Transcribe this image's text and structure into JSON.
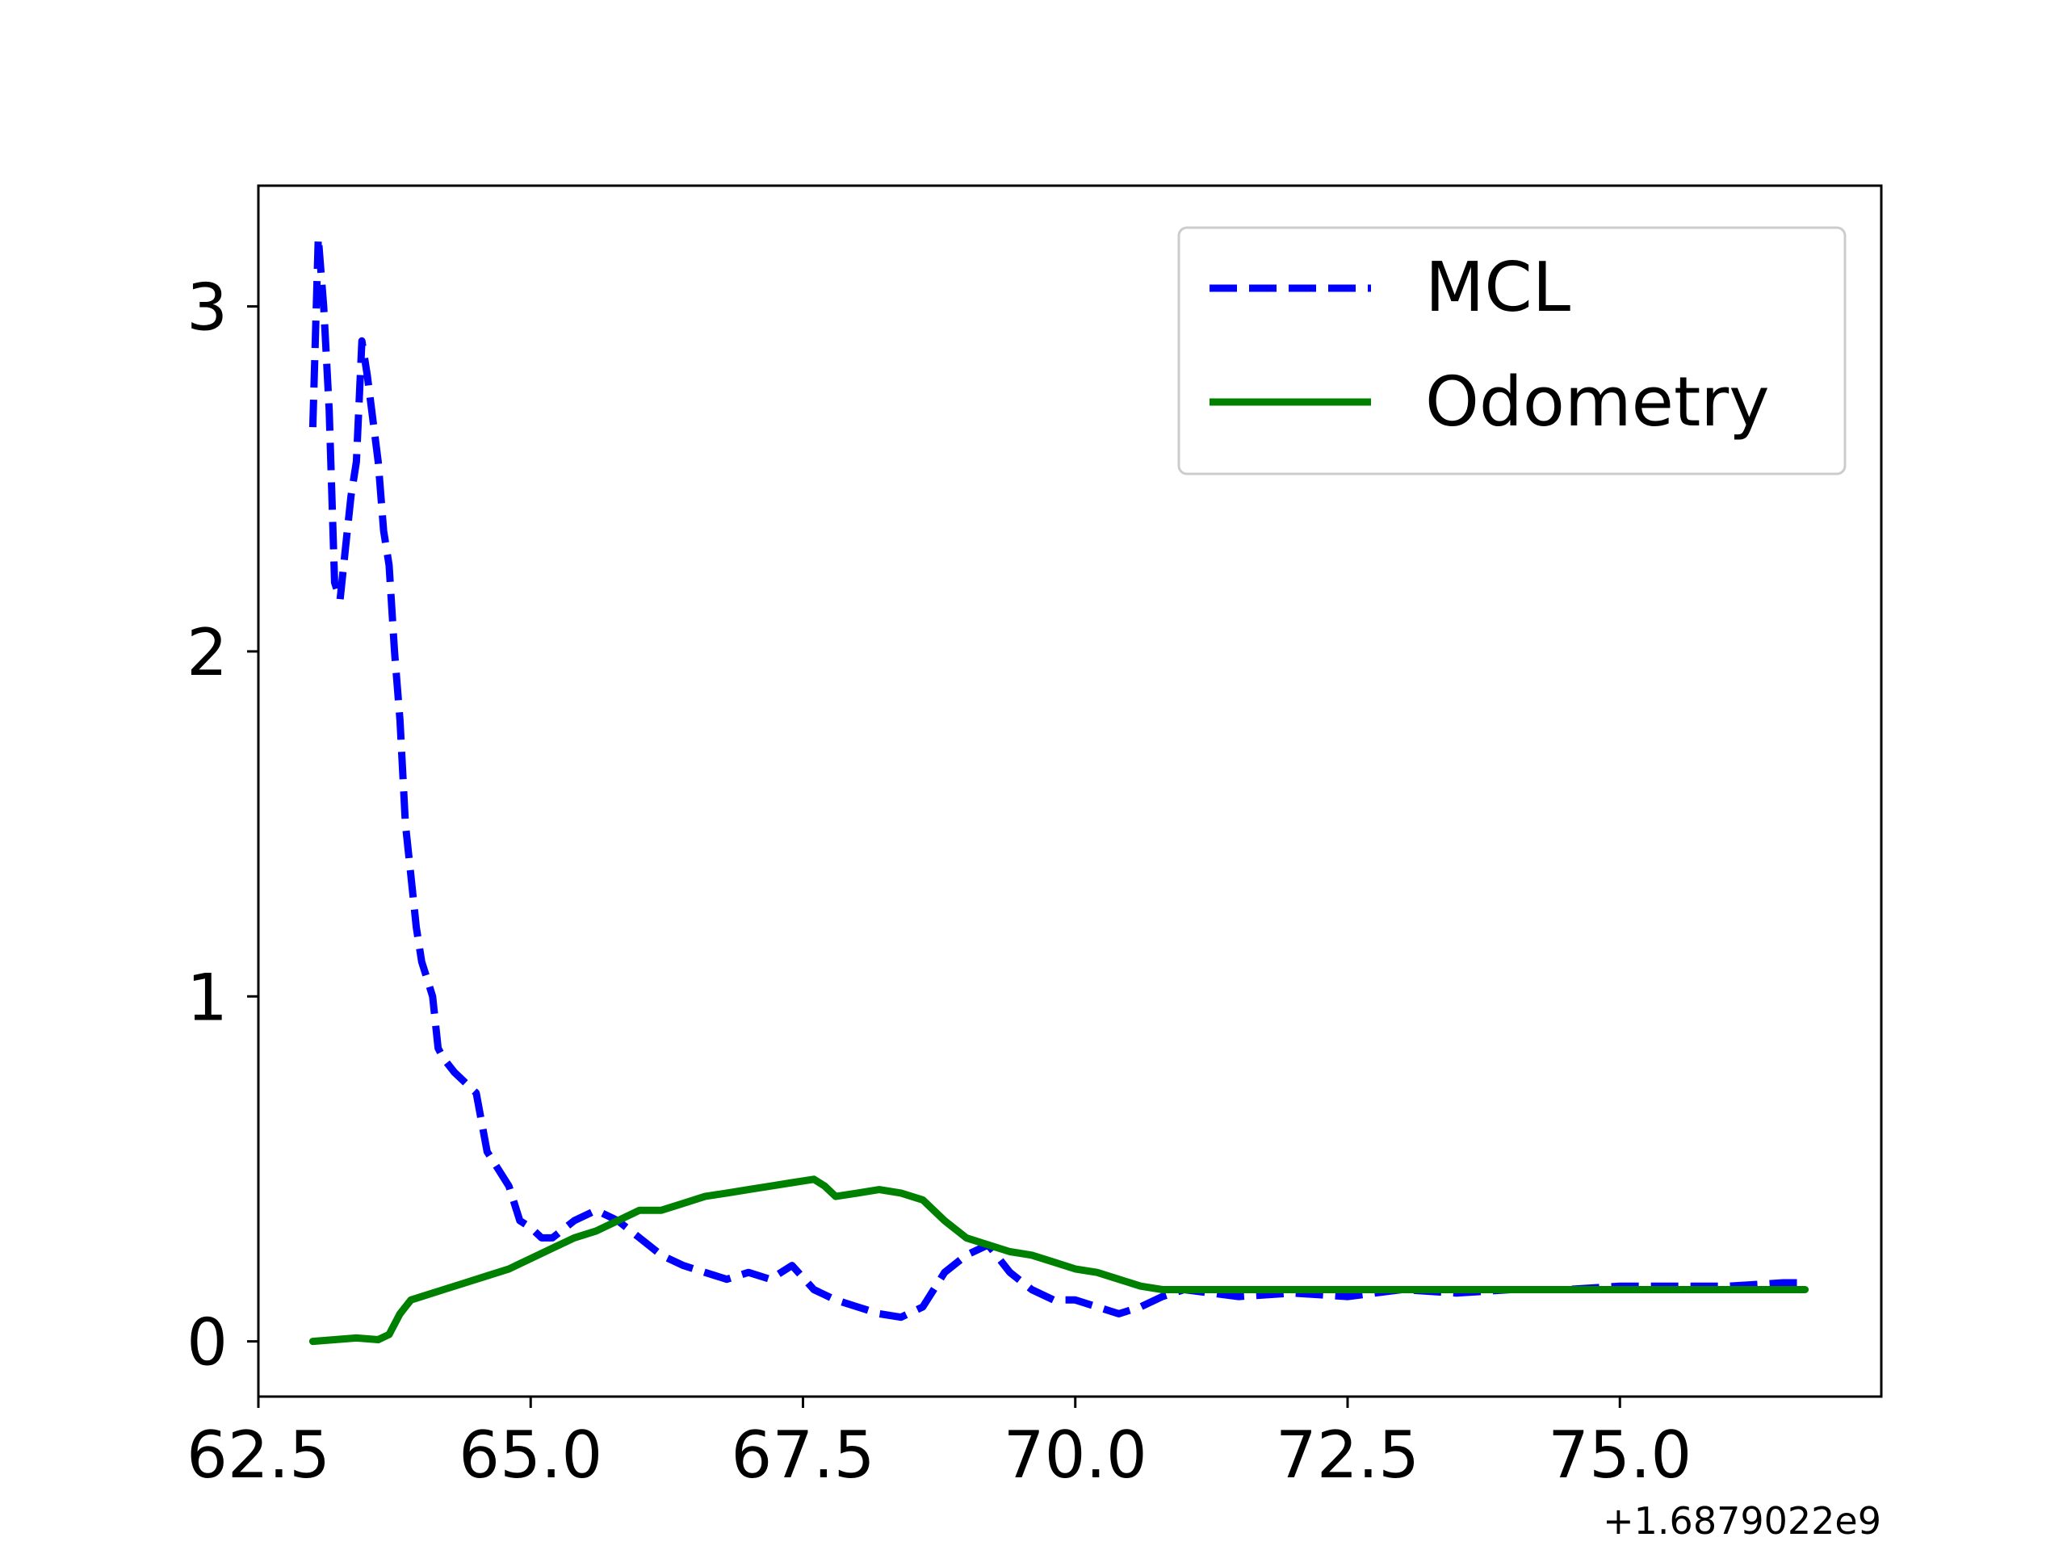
{
  "chart_data": {
    "type": "line",
    "title": "",
    "xlabel": "",
    "ylabel": "",
    "x_offset_label": "+1.6879022e9",
    "xlim": [
      62.5,
      77.4
    ],
    "ylim": [
      -0.16,
      3.35
    ],
    "x_ticks": [
      {
        "value": 62.5,
        "label": "62.5"
      },
      {
        "value": 65.0,
        "label": "65.0"
      },
      {
        "value": 67.5,
        "label": "67.5"
      },
      {
        "value": 70.0,
        "label": "70.0"
      },
      {
        "value": 72.5,
        "label": "72.5"
      },
      {
        "value": 75.0,
        "label": "75.0"
      }
    ],
    "y_ticks": [
      {
        "value": 0,
        "label": "0"
      },
      {
        "value": 1,
        "label": "1"
      },
      {
        "value": 2,
        "label": "2"
      },
      {
        "value": 3,
        "label": "3"
      }
    ],
    "grid": false,
    "legend": {
      "position": "top-right"
    },
    "series": [
      {
        "name": "MCL",
        "color": "#0000ff",
        "style": "dashed",
        "x": [
          63.0,
          63.05,
          63.1,
          63.15,
          63.2,
          63.25,
          63.3,
          63.35,
          63.4,
          63.45,
          63.5,
          63.6,
          63.65,
          63.7,
          63.75,
          63.8,
          63.85,
          63.9,
          63.95,
          64.0,
          64.05,
          64.1,
          64.15,
          64.2,
          64.3,
          64.4,
          64.5,
          64.6,
          64.7,
          64.8,
          64.9,
          65.0,
          65.1,
          65.2,
          65.4,
          65.6,
          65.8,
          66.0,
          66.2,
          66.4,
          66.6,
          66.8,
          67.0,
          67.2,
          67.4,
          67.6,
          67.8,
          68.0,
          68.2,
          68.4,
          68.6,
          68.8,
          69.0,
          69.2,
          69.4,
          69.6,
          69.8,
          70.0,
          70.2,
          70.4,
          70.6,
          70.8,
          71.0,
          71.5,
          72.0,
          72.5,
          73.0,
          73.5,
          74.0,
          74.5,
          75.0,
          75.5,
          76.0,
          76.5,
          76.7
        ],
        "y": [
          2.65,
          3.2,
          3.0,
          2.7,
          2.2,
          2.15,
          2.3,
          2.45,
          2.55,
          2.9,
          2.8,
          2.55,
          2.35,
          2.25,
          2.0,
          1.8,
          1.5,
          1.35,
          1.2,
          1.1,
          1.05,
          1.0,
          0.85,
          0.82,
          0.78,
          0.75,
          0.72,
          0.55,
          0.5,
          0.45,
          0.35,
          0.33,
          0.3,
          0.3,
          0.35,
          0.38,
          0.35,
          0.3,
          0.25,
          0.22,
          0.2,
          0.18,
          0.2,
          0.18,
          0.22,
          0.15,
          0.12,
          0.1,
          0.08,
          0.07,
          0.1,
          0.2,
          0.25,
          0.28,
          0.2,
          0.15,
          0.12,
          0.12,
          0.1,
          0.08,
          0.1,
          0.13,
          0.15,
          0.13,
          0.14,
          0.13,
          0.15,
          0.14,
          0.15,
          0.15,
          0.16,
          0.16,
          0.16,
          0.17,
          0.17
        ]
      },
      {
        "name": "Odometry",
        "color": "#008000",
        "style": "solid",
        "x": [
          63.0,
          63.2,
          63.4,
          63.6,
          63.7,
          63.8,
          63.9,
          64.0,
          64.2,
          64.4,
          64.6,
          64.8,
          65.0,
          65.2,
          65.4,
          65.6,
          65.8,
          66.0,
          66.2,
          66.4,
          66.6,
          66.8,
          67.0,
          67.2,
          67.4,
          67.6,
          67.7,
          67.8,
          68.0,
          68.2,
          68.4,
          68.6,
          68.8,
          69.0,
          69.2,
          69.4,
          69.6,
          69.8,
          70.0,
          70.2,
          70.4,
          70.6,
          70.8,
          71.0,
          71.5,
          72.0,
          73.0,
          74.0,
          75.0,
          76.0,
          76.7
        ],
        "y": [
          0.0,
          0.005,
          0.01,
          0.005,
          0.02,
          0.08,
          0.12,
          0.13,
          0.15,
          0.17,
          0.19,
          0.21,
          0.24,
          0.27,
          0.3,
          0.32,
          0.35,
          0.38,
          0.38,
          0.4,
          0.42,
          0.43,
          0.44,
          0.45,
          0.46,
          0.47,
          0.45,
          0.42,
          0.43,
          0.44,
          0.43,
          0.41,
          0.35,
          0.3,
          0.28,
          0.26,
          0.25,
          0.23,
          0.21,
          0.2,
          0.18,
          0.16,
          0.15,
          0.15,
          0.15,
          0.15,
          0.15,
          0.15,
          0.15,
          0.15,
          0.15
        ]
      }
    ]
  }
}
